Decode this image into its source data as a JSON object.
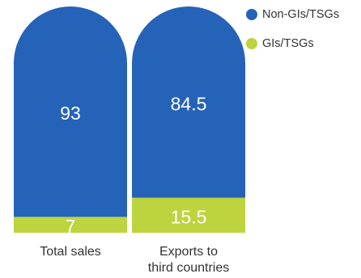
{
  "chart_data": {
    "type": "bar",
    "stacked": true,
    "categories": [
      "Total sales",
      "Exports to third countries"
    ],
    "series": [
      {
        "name": "Non-GIs/TSGs",
        "values": [
          93,
          84.5
        ],
        "color": "#2563b8"
      },
      {
        "name": "GIs/TSGs",
        "values": [
          7,
          15.5
        ],
        "color": "#bdd43e"
      }
    ],
    "value_labels": [
      [
        "93",
        "84.5"
      ],
      [
        "7",
        "15.5"
      ]
    ],
    "category_label_lines": [
      [
        "Total sales"
      ],
      [
        "Exports to",
        "third countries"
      ]
    ],
    "ylim": [
      0,
      100
    ],
    "legend_position": "top-right",
    "grid": false
  }
}
